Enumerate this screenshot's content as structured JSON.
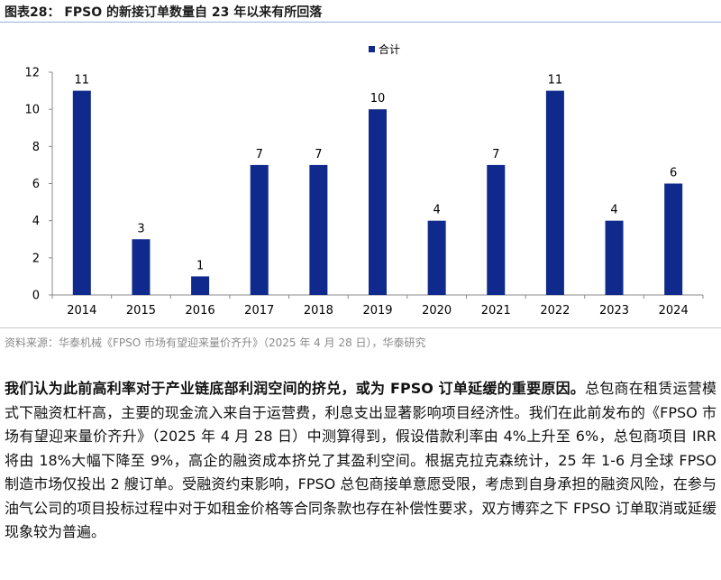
{
  "figure": {
    "title": "图表28： FPSO 的新接订单数量自 23 年以来有所回落"
  },
  "chart_data": {
    "type": "bar",
    "categories": [
      "2014",
      "2015",
      "2016",
      "2017",
      "2018",
      "2019",
      "2020",
      "2021",
      "2022",
      "2023",
      "2024"
    ],
    "series": [
      {
        "name": "合计",
        "values": [
          11,
          3,
          1,
          7,
          7,
          10,
          4,
          7,
          11,
          4,
          6
        ]
      }
    ],
    "ylim": [
      0,
      12
    ],
    "yticks": [
      0,
      2,
      4,
      6,
      8,
      10,
      12
    ],
    "legend": "top-center",
    "grid": false,
    "color": "#0f2a8c"
  },
  "source": "资料来源：华泰机械《FPSO 市场有望迎来量价齐升》（2025 年 4 月 28 日），华泰研究",
  "paragraph": {
    "lead": "我们认为此前高利率对于产业链底部利润空间的挤兑，或为 FPSO 订单延缓的重要原因。",
    "body": "总包商在租赁运营模式下融资杠杆高，主要的现金流入来自于运营费，利息支出显著影响项目经济性。我们在此前发布的《FPSO 市场有望迎来量价齐升》（2025 年 4 月 28 日）中测算得到，假设借款利率由 4%上升至 6%，总包商项目 IRR 将由 18%大幅下降至 9%，高企的融资成本挤兑了其盈利空间。根据克拉克森统计，25 年 1-6 月全球 FPSO 制造市场仅投出 2 艘订单。受融资约束影响，FPSO 总包商接单意愿受限，考虑到自身承担的融资风险，在参与油气公司的项目投标过程中对于如租金价格等合同条款也存在补偿性要求，双方博弈之下 FPSO 订单取消或延缓现象较为普遍。"
  }
}
